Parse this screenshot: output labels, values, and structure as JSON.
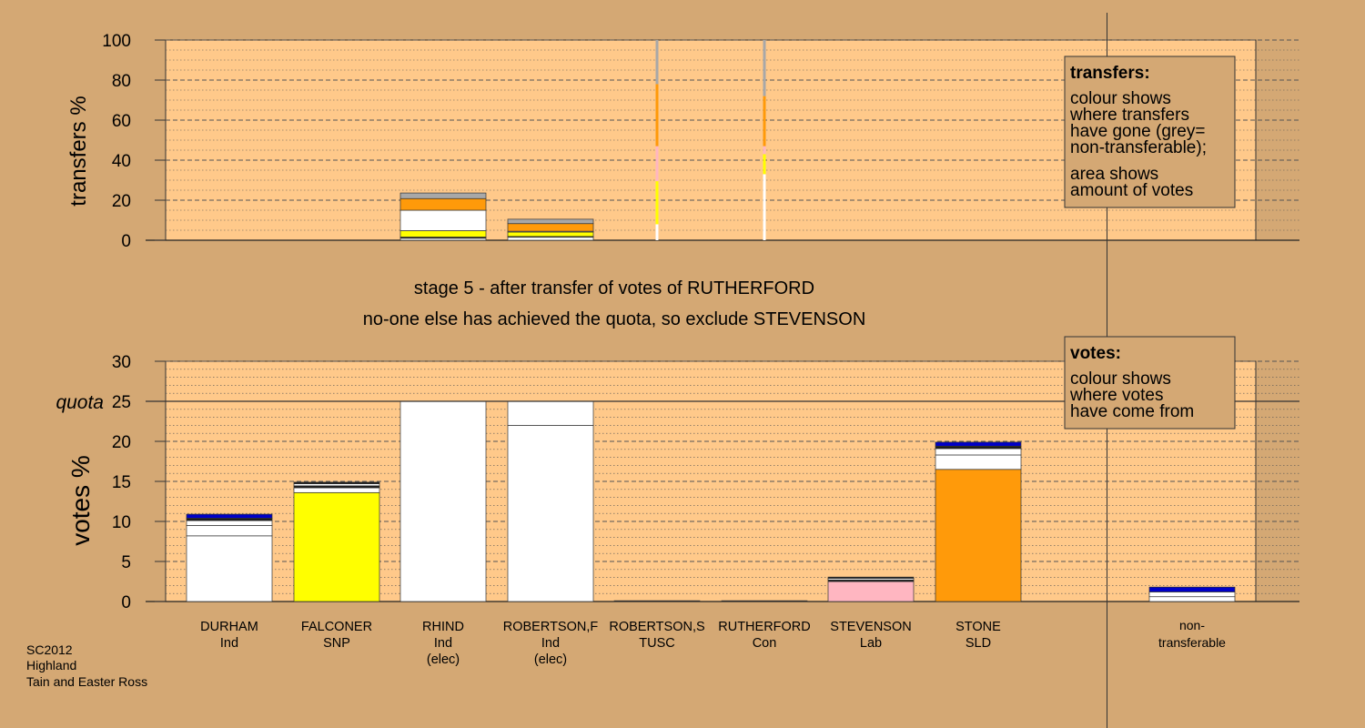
{
  "chart_data": [
    {
      "type": "bar",
      "panel": "transfers",
      "ylabel": "transfers %",
      "ylim": [
        0,
        100
      ],
      "yticks": [
        0,
        20,
        40,
        60,
        80,
        100
      ],
      "categories": [
        "DURHAM",
        "FALCONER",
        "RHIND",
        "ROBERTSON,F",
        "ROBERTSON,S",
        "RUTHERFORD",
        "STEVENSON",
        "STONE"
      ],
      "bars": [
        {
          "category": "RHIND",
          "width": "normal",
          "segments": [
            {
              "value": 1.0,
              "color": "#ffffff"
            },
            {
              "value": 0.6,
              "color": "#1a1a1a"
            },
            {
              "value": 3.2,
              "color": "#ffff00"
            },
            {
              "value": 10.2,
              "color": "#ffffff"
            },
            {
              "value": 5.8,
              "color": "#ff9a0a"
            },
            {
              "value": 2.8,
              "color": "#a8a8a8"
            }
          ]
        },
        {
          "category": "ROBERTSON,F",
          "width": "normal",
          "segments": [
            {
              "value": 1.5,
              "color": "#ffffff"
            },
            {
              "value": 0.4,
              "color": "#1a1a1a"
            },
            {
              "value": 2.2,
              "color": "#ffff00"
            },
            {
              "value": 0.4,
              "color": "#ffffff"
            },
            {
              "value": 3.8,
              "color": "#ff9a0a"
            },
            {
              "value": 2.2,
              "color": "#a8a8a8"
            }
          ]
        },
        {
          "category": "ROBERTSON,S",
          "width": "thin",
          "segments": [
            {
              "value": 8,
              "color": "#ffffff"
            },
            {
              "value": 21.5,
              "color": "#ffff00"
            },
            {
              "value": 17.5,
              "color": "#ffb6c1"
            },
            {
              "value": 31,
              "color": "#ff9a0a"
            },
            {
              "value": 22,
              "color": "#a8a8a8"
            }
          ]
        },
        {
          "category": "RUTHERFORD",
          "width": "thin",
          "segments": [
            {
              "value": 33,
              "color": "#ffffff"
            },
            {
              "value": 10,
              "color": "#ffff00"
            },
            {
              "value": 4,
              "color": "#ffb6c1"
            },
            {
              "value": 25,
              "color": "#ff9a0a"
            },
            {
              "value": 28,
              "color": "#a8a8a8"
            }
          ]
        }
      ],
      "legend": {
        "title": "transfers:",
        "lines": [
          "colour shows",
          "where transfers",
          "have gone (grey=",
          "non-transferable);",
          "area shows",
          "amount of votes"
        ]
      }
    },
    {
      "type": "bar",
      "panel": "votes",
      "ylabel": "votes %",
      "ylim": [
        0,
        30
      ],
      "yticks": [
        0,
        5,
        10,
        15,
        20,
        25,
        30
      ],
      "quota": 25,
      "quota_label": "quota",
      "categories": [
        "DURHAM",
        "FALCONER",
        "RHIND",
        "ROBERTSON,F",
        "ROBERTSON,S",
        "RUTHERFORD",
        "STEVENSON",
        "STONE",
        "non-transferable"
      ],
      "parties": [
        "Ind",
        "SNP",
        "Ind\n(elec)",
        "Ind\n(elec)",
        "TUSC",
        "Con",
        "Lab",
        "SLD",
        ""
      ],
      "bars": [
        {
          "category": "DURHAM",
          "segments": [
            {
              "value": 8.2,
              "color": "#ffffff"
            },
            {
              "value": 1.3,
              "color": "#ffffff"
            },
            {
              "value": 0.6,
              "color": "#ffffff"
            },
            {
              "value": 0.3,
              "color": "#1a1a1a"
            },
            {
              "value": 0.5,
              "color": "#0000c8"
            }
          ]
        },
        {
          "category": "FALCONER",
          "segments": [
            {
              "value": 13.6,
              "color": "#ffff00"
            },
            {
              "value": 0.6,
              "color": "#ffffff"
            },
            {
              "value": 0.25,
              "color": "#1a1a1a"
            },
            {
              "value": 0.25,
              "color": "#ffffff"
            },
            {
              "value": 0.2,
              "color": "#1a1a1a"
            }
          ]
        },
        {
          "category": "RHIND",
          "segments": [
            {
              "value": 25,
              "color": "#ffffff"
            }
          ]
        },
        {
          "category": "ROBERTSON,F",
          "segments": [
            {
              "value": 22,
              "color": "#ffffff"
            },
            {
              "value": 3,
              "color": "#ffffff"
            }
          ]
        },
        {
          "category": "ROBERTSON,S",
          "segments": [
            {
              "value": 0.1,
              "color": "#1a1a1a"
            }
          ]
        },
        {
          "category": "RUTHERFORD",
          "segments": [
            {
              "value": 0.1,
              "color": "#1a1a1a"
            }
          ]
        },
        {
          "category": "STEVENSON",
          "segments": [
            {
              "value": 2.5,
              "color": "#ffb6c1"
            },
            {
              "value": 0.2,
              "color": "#1a1a1a"
            },
            {
              "value": 0.2,
              "color": "#ffffff"
            },
            {
              "value": 0.15,
              "color": "#1a1a1a"
            }
          ]
        },
        {
          "category": "STONE",
          "segments": [
            {
              "value": 16.5,
              "color": "#ff9a0a"
            },
            {
              "value": 1.8,
              "color": "#ffffff"
            },
            {
              "value": 0.8,
              "color": "#ffffff"
            },
            {
              "value": 0.3,
              "color": "#1a1a1a"
            },
            {
              "value": 0.5,
              "color": "#0000c8"
            }
          ]
        },
        {
          "category": "non-transferable",
          "segments": [
            {
              "value": 0.6,
              "color": "#ffffff"
            },
            {
              "value": 0.6,
              "color": "#ffffff"
            },
            {
              "value": 0.6,
              "color": "#0000c8"
            }
          ]
        }
      ],
      "legend": {
        "title": "votes:",
        "lines": [
          "colour shows",
          "where votes",
          "have come from"
        ]
      }
    }
  ],
  "stage_title": "stage 5 - after transfer of votes of RUTHERFORD",
  "stage_subtitle": "no-one else has achieved the quota, so exclude STEVENSON",
  "footer": [
    "SC2012",
    "Highland",
    "Tain and Easter Ross"
  ],
  "colors": {
    "background": "#d4a874",
    "plot_background": "#ffc98a"
  }
}
